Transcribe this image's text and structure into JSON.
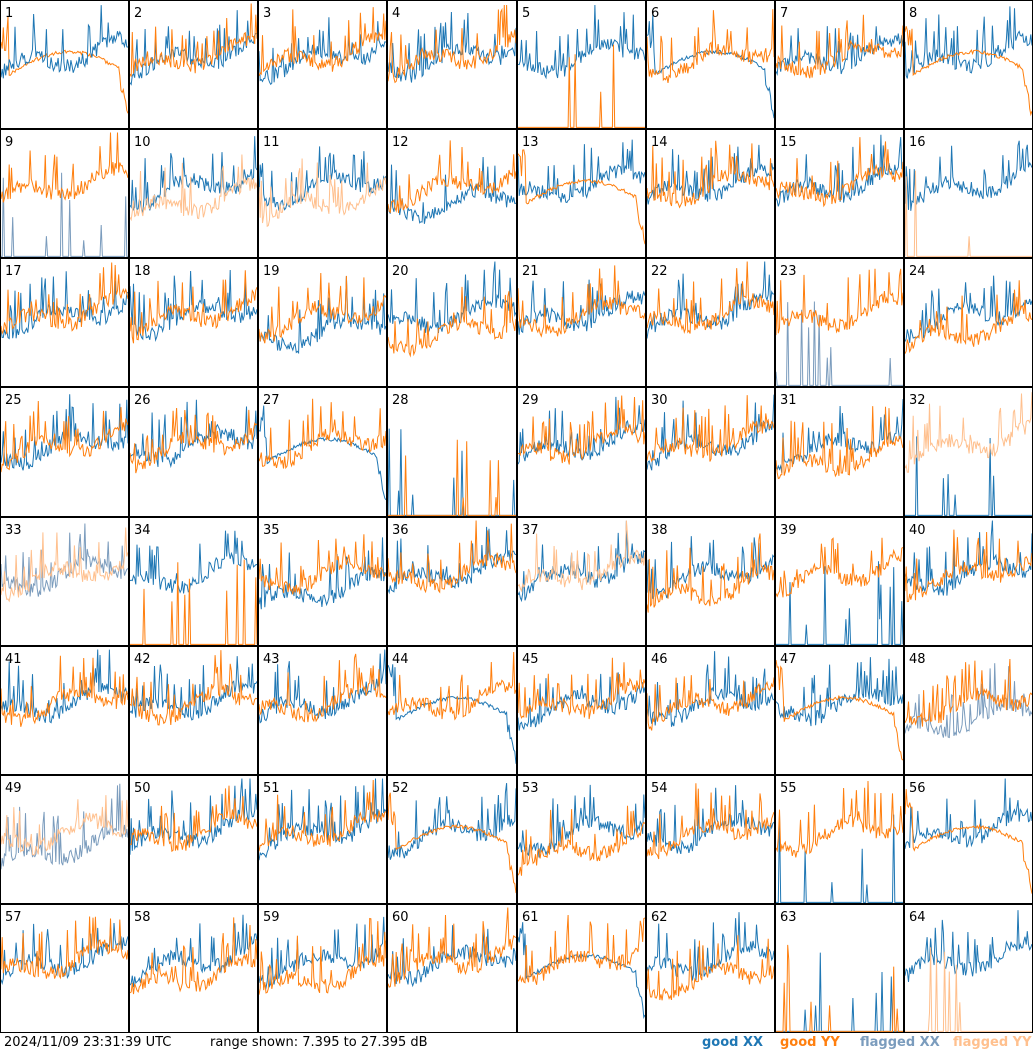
{
  "footer": {
    "timestamp": "2024/11/09 23:31:39 UTC",
    "range_label": "range shown: 7.395 to 27.395 dB"
  },
  "legend": [
    {
      "key": "good_xx",
      "label": "good XX",
      "color": "#1f77b4"
    },
    {
      "key": "good_yy",
      "label": "good YY",
      "color": "#ff7f0e"
    },
    {
      "key": "flagged_xx",
      "label": "flagged XX",
      "color": "#7b9cbd"
    },
    {
      "key": "flagged_yy",
      "label": "flagged YY",
      "color": "#ffc08e"
    }
  ],
  "chart_data": {
    "type": "line",
    "layout": "small-multiples 8x8",
    "ylim": [
      7.395,
      27.395
    ],
    "yunits": "dB",
    "panels": [
      {
        "id": "1",
        "xx": "normal",
        "yy": "smooth",
        "order": "yy"
      },
      {
        "id": "2",
        "xx": "normal",
        "yy": "normal"
      },
      {
        "id": "3",
        "xx": "normal",
        "yy": "normal"
      },
      {
        "id": "4",
        "xx": "normal",
        "yy": "normal"
      },
      {
        "id": "5",
        "xx": "normal",
        "yy": "dead"
      },
      {
        "id": "6",
        "xx": "smooth",
        "yy": "normal"
      },
      {
        "id": "7",
        "xx": "normal",
        "yy": "normal"
      },
      {
        "id": "8",
        "xx": "normal",
        "yy": "smooth"
      },
      {
        "id": "9",
        "xx": "dead",
        "yy": "normal",
        "flag_xx": true
      },
      {
        "id": "10",
        "xx": "normal",
        "yy": "low",
        "flag_yy": true
      },
      {
        "id": "11",
        "xx": "normal",
        "yy": "low",
        "flag_yy": true
      },
      {
        "id": "12",
        "xx": "low",
        "yy": "normal"
      },
      {
        "id": "13",
        "xx": "normal",
        "yy": "smooth"
      },
      {
        "id": "14",
        "xx": "normal",
        "yy": "normal"
      },
      {
        "id": "15",
        "xx": "normal",
        "yy": "normal"
      },
      {
        "id": "16",
        "xx": "normal",
        "yy": "dead",
        "flag_yy": true
      },
      {
        "id": "17",
        "xx": "normal",
        "yy": "normal"
      },
      {
        "id": "18",
        "xx": "normal",
        "yy": "normal"
      },
      {
        "id": "19",
        "xx": "low",
        "yy": "normal"
      },
      {
        "id": "20",
        "xx": "normal",
        "yy": "low"
      },
      {
        "id": "21",
        "xx": "normal",
        "yy": "normal"
      },
      {
        "id": "22",
        "xx": "normal",
        "yy": "normal"
      },
      {
        "id": "23",
        "xx": "dead",
        "yy": "normal",
        "flag_xx": true
      },
      {
        "id": "24",
        "xx": "normal",
        "yy": "low"
      },
      {
        "id": "25",
        "xx": "normal",
        "yy": "normal"
      },
      {
        "id": "26",
        "xx": "normal",
        "yy": "normal"
      },
      {
        "id": "27",
        "xx": "smooth",
        "yy": "normal"
      },
      {
        "id": "28",
        "xx": "dead",
        "yy": "dead"
      },
      {
        "id": "29",
        "xx": "normal",
        "yy": "normal"
      },
      {
        "id": "30",
        "xx": "normal",
        "yy": "normal"
      },
      {
        "id": "31",
        "xx": "normal",
        "yy": "low"
      },
      {
        "id": "32",
        "xx": "dead",
        "yy": "normal",
        "flag_yy": true
      },
      {
        "id": "33",
        "xx": "normal",
        "yy": "normal",
        "flag_xx": true,
        "flag_yy": true
      },
      {
        "id": "34",
        "xx": "normal",
        "yy": "dead"
      },
      {
        "id": "35",
        "xx": "low",
        "yy": "normal"
      },
      {
        "id": "36",
        "xx": "normal",
        "yy": "normal"
      },
      {
        "id": "37",
        "xx": "normal",
        "yy": "normal",
        "flag_yy": true
      },
      {
        "id": "38",
        "xx": "normal",
        "yy": "low"
      },
      {
        "id": "39",
        "xx": "dead",
        "yy": "normal"
      },
      {
        "id": "40",
        "xx": "normal",
        "yy": "normal"
      },
      {
        "id": "41",
        "xx": "normal",
        "yy": "normal"
      },
      {
        "id": "42",
        "xx": "normal",
        "yy": "normal"
      },
      {
        "id": "43",
        "xx": "normal",
        "yy": "normal"
      },
      {
        "id": "44",
        "xx": "smooth",
        "yy": "normal"
      },
      {
        "id": "45",
        "xx": "normal",
        "yy": "normal"
      },
      {
        "id": "46",
        "xx": "normal",
        "yy": "normal"
      },
      {
        "id": "47",
        "xx": "normal",
        "yy": "smooth"
      },
      {
        "id": "48",
        "xx": "low",
        "yy": "normal",
        "flag_xx": true
      },
      {
        "id": "49",
        "xx": "low",
        "yy": "normal",
        "flag_xx": true,
        "flag_yy": true
      },
      {
        "id": "50",
        "xx": "normal",
        "yy": "normal"
      },
      {
        "id": "51",
        "xx": "normal",
        "yy": "normal"
      },
      {
        "id": "52",
        "xx": "normal",
        "yy": "smooth"
      },
      {
        "id": "53",
        "xx": "normal",
        "yy": "low"
      },
      {
        "id": "54",
        "xx": "normal",
        "yy": "normal"
      },
      {
        "id": "55",
        "xx": "dead",
        "yy": "normal"
      },
      {
        "id": "56",
        "xx": "normal",
        "yy": "smooth"
      },
      {
        "id": "57",
        "xx": "normal",
        "yy": "normal"
      },
      {
        "id": "58",
        "xx": "normal",
        "yy": "low"
      },
      {
        "id": "59",
        "xx": "normal",
        "yy": "low"
      },
      {
        "id": "60",
        "xx": "normal",
        "yy": "normal"
      },
      {
        "id": "61",
        "xx": "smooth",
        "yy": "normal"
      },
      {
        "id": "62",
        "xx": "normal",
        "yy": "low"
      },
      {
        "id": "63",
        "xx": "dead",
        "yy": "dead"
      },
      {
        "id": "64",
        "xx": "normal",
        "yy": "dead",
        "flag_yy": true
      }
    ]
  }
}
